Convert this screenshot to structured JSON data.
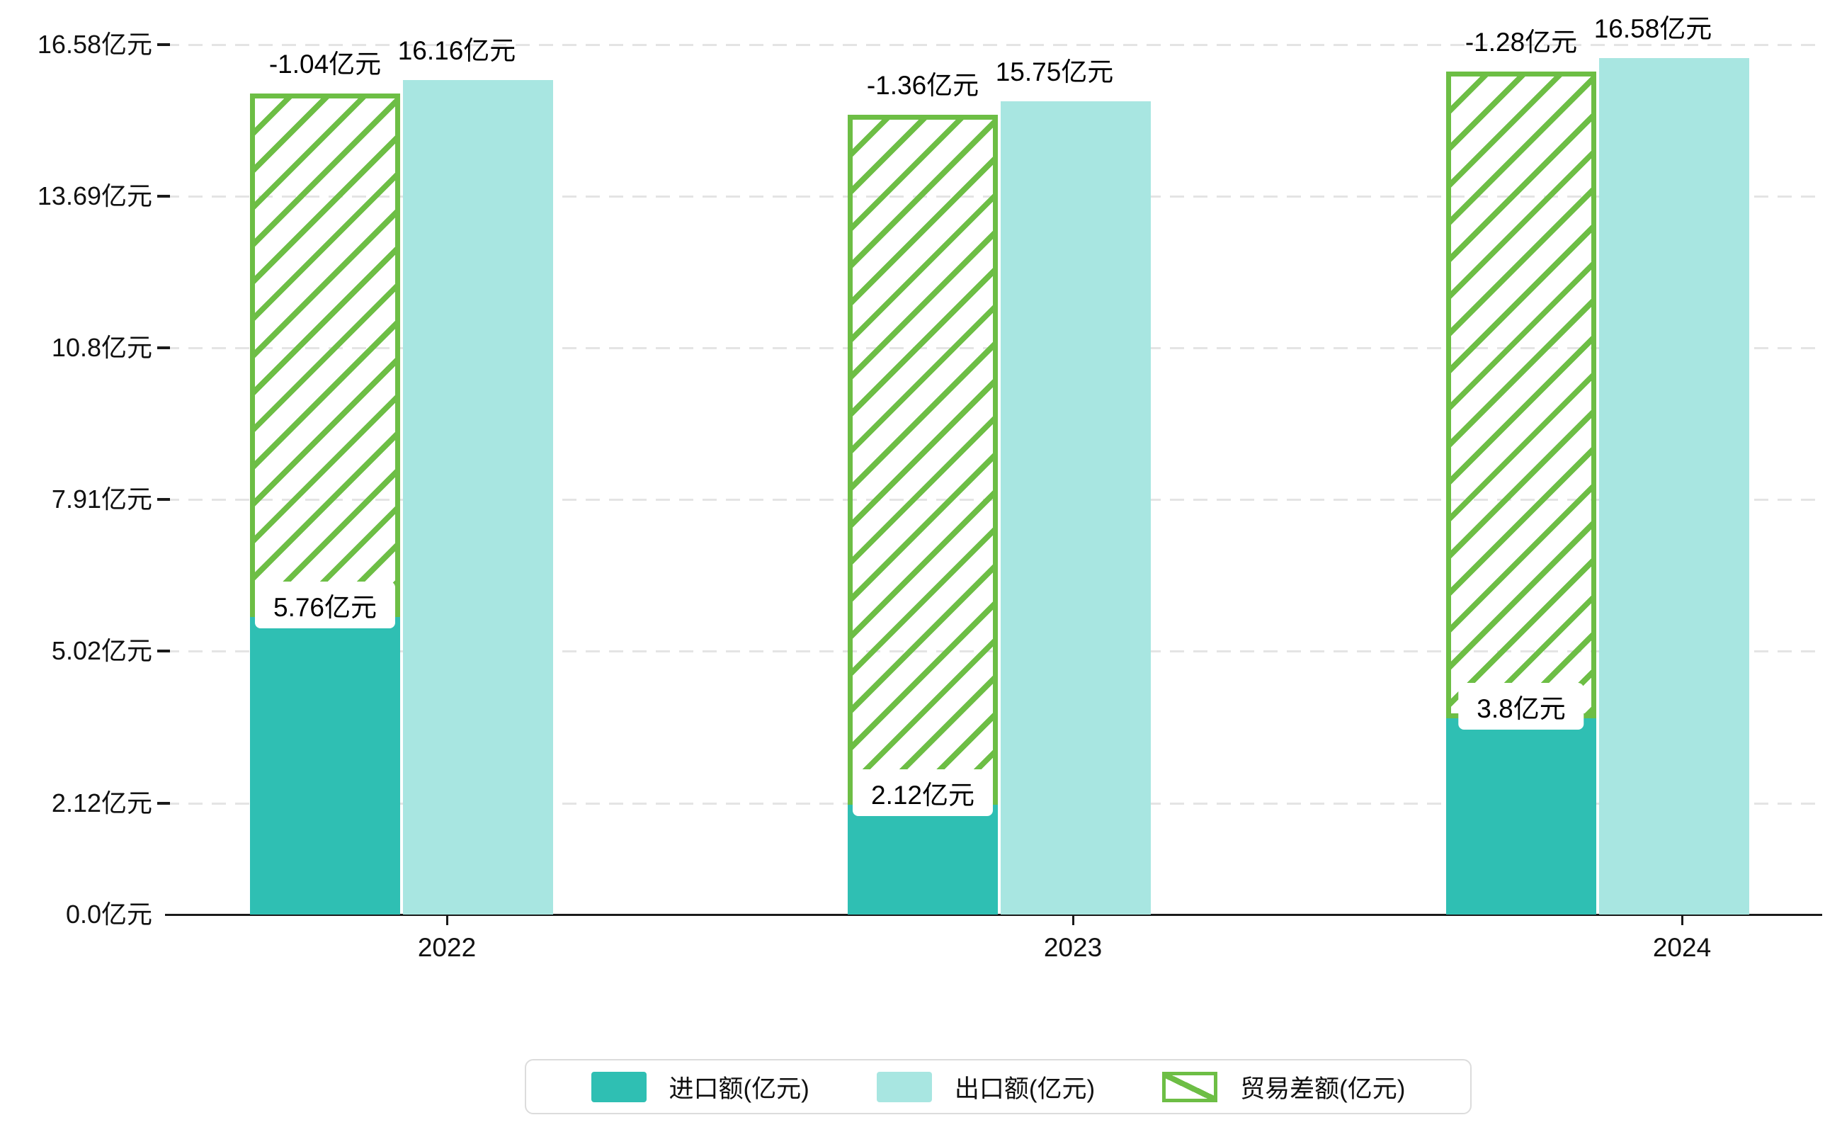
{
  "chart_data": {
    "type": "bar",
    "title": "",
    "unit": "亿元",
    "categories": [
      "2022",
      "2023",
      "2024"
    ],
    "series": [
      {
        "name": "进口额(亿元)",
        "values": [
          5.76,
          2.12,
          3.8
        ],
        "point_labels": [
          "5.76亿元",
          "2.12亿元",
          "3.8亿元"
        ],
        "color": "#2FBFB3",
        "bar_style": "solid",
        "label_style": "white-chip"
      },
      {
        "name": "出口额(亿元)",
        "values": [
          16.16,
          15.75,
          16.58
        ],
        "point_labels": [
          "16.16亿元",
          "15.75亿元",
          "16.58亿元"
        ],
        "color": "#A8E6E1",
        "bar_style": "solid",
        "label_style": "plain"
      },
      {
        "name": "贸易差额(亿元)",
        "values": [
          -1.04,
          -1.36,
          -1.28
        ],
        "point_labels": [
          "-1.04亿元",
          "-1.36亿元",
          "-1.28亿元"
        ],
        "color": "#6DBE45",
        "bar_style": "hatched",
        "drawn_span": "from top of import bar up to just below top of export bar",
        "label_style": "plain"
      }
    ],
    "y_axis": {
      "tick_values": [
        0,
        2.12,
        5.02,
        7.91,
        10.8,
        13.69,
        16.58
      ],
      "tick_labels": [
        "0.0亿元",
        "2.12亿元",
        "5.02亿元",
        "7.91亿元",
        "10.8亿元",
        "13.69亿元",
        "16.58亿元"
      ],
      "range": [
        0,
        16.58
      ],
      "grid": "dashed"
    },
    "x_axis": {
      "tick_labels": [
        "2022",
        "2023",
        "2024"
      ]
    },
    "legend": {
      "position": "bottom-center",
      "entries": [
        "进口额(亿元)",
        "出口额(亿元)",
        "贸易差额(亿元)"
      ]
    },
    "colors": {
      "import_bar": "#2FBFB3",
      "export_bar": "#A8E6E1",
      "balance_hatch": "#6DBE45",
      "gridline": "#E4E4E4",
      "axis": "#1A1A1A",
      "text": "#111111",
      "chip_background": "#FFFFFF",
      "legend_border": "#DCDCDC",
      "background": "#FFFFFF"
    }
  }
}
